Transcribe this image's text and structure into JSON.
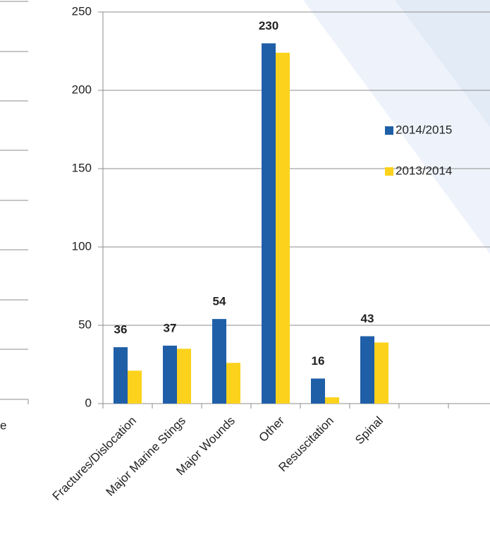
{
  "chart_data": {
    "type": "bar",
    "categories": [
      "Fractures/Dislocation",
      "Major Marine Stings",
      "Major Wounds",
      "Other",
      "Resuscitation",
      "Spinal",
      null,
      null
    ],
    "series": [
      {
        "name": "2014/2015",
        "color": "#1f5fa8",
        "values": [
          36,
          37,
          54,
          230,
          16,
          43,
          null,
          null
        ],
        "data_labels": true
      },
      {
        "name": "2013/2014",
        "color": "#fcd21c",
        "values": [
          21,
          35,
          26,
          224,
          4,
          39,
          null,
          null
        ],
        "data_labels": false
      }
    ],
    "ylim": [
      0,
      250
    ],
    "yticks": [
      0,
      50,
      100,
      150,
      200,
      250
    ],
    "grid": true,
    "legend": "right"
  },
  "left_panel": {
    "label_fragment": "e"
  }
}
